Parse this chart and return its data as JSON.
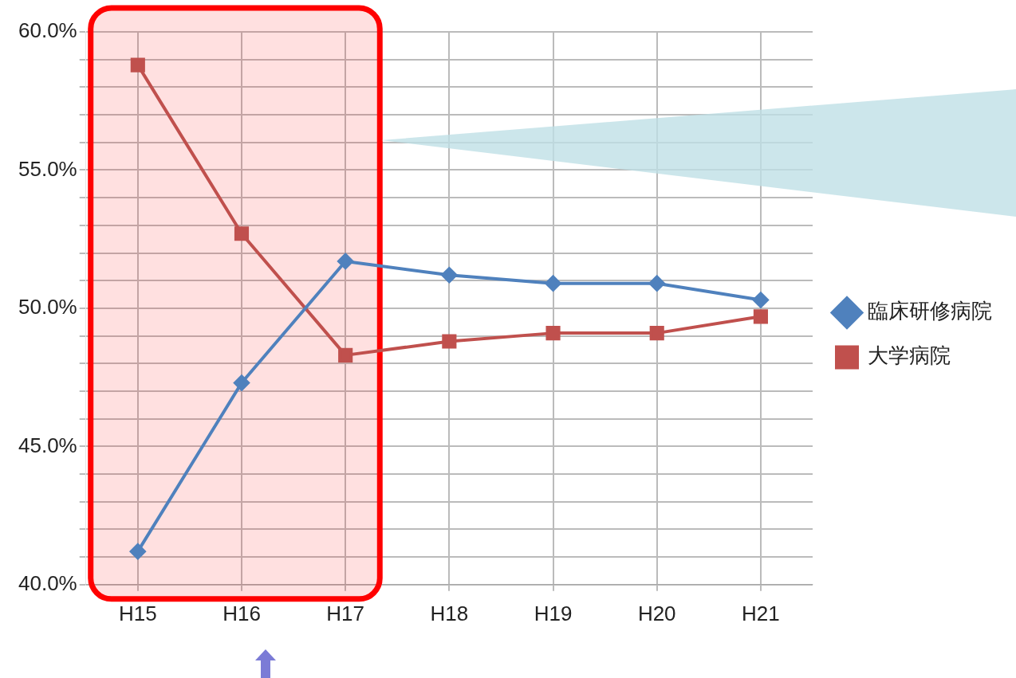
{
  "chart_data": {
    "type": "line",
    "categories": [
      "H15",
      "H16",
      "H17",
      "H18",
      "H19",
      "H20",
      "H21"
    ],
    "series": [
      {
        "name": "臨床研修病院",
        "color": "#4f81bd",
        "marker": "diamond",
        "values": [
          41.2,
          47.3,
          51.7,
          51.2,
          50.9,
          50.9,
          50.3
        ]
      },
      {
        "name": "大学病院",
        "color": "#c0504d",
        "marker": "square",
        "values": [
          58.8,
          52.7,
          48.3,
          48.8,
          49.1,
          49.1,
          49.7
        ]
      }
    ],
    "ylim": [
      40,
      60
    ],
    "yticks": [
      {
        "value": 40,
        "label": "40.0%"
      },
      {
        "value": 41,
        "label": null
      },
      {
        "value": 42,
        "label": null
      },
      {
        "value": 43,
        "label": null
      },
      {
        "value": 44,
        "label": null
      },
      {
        "value": 45,
        "label": "45.0%"
      },
      {
        "value": 46,
        "label": null
      },
      {
        "value": 47,
        "label": null
      },
      {
        "value": 48,
        "label": null
      },
      {
        "value": 49,
        "label": null
      },
      {
        "value": 50,
        "label": "50.0%"
      },
      {
        "value": 51,
        "label": null
      },
      {
        "value": 52,
        "label": null
      },
      {
        "value": 53,
        "label": null
      },
      {
        "value": 54,
        "label": null
      },
      {
        "value": 55,
        "label": "55.0%"
      },
      {
        "value": 56,
        "label": null
      },
      {
        "value": 57,
        "label": null
      },
      {
        "value": 58,
        "label": null
      },
      {
        "value": 59,
        "label": null
      },
      {
        "value": 60,
        "label": "60.0%"
      }
    ],
    "bands": [
      {
        "axis": "x",
        "from": "H15",
        "to": "H17",
        "color": "#ff0000"
      }
    ],
    "grid": true,
    "legend": "right",
    "line_style": "solid"
  }
}
